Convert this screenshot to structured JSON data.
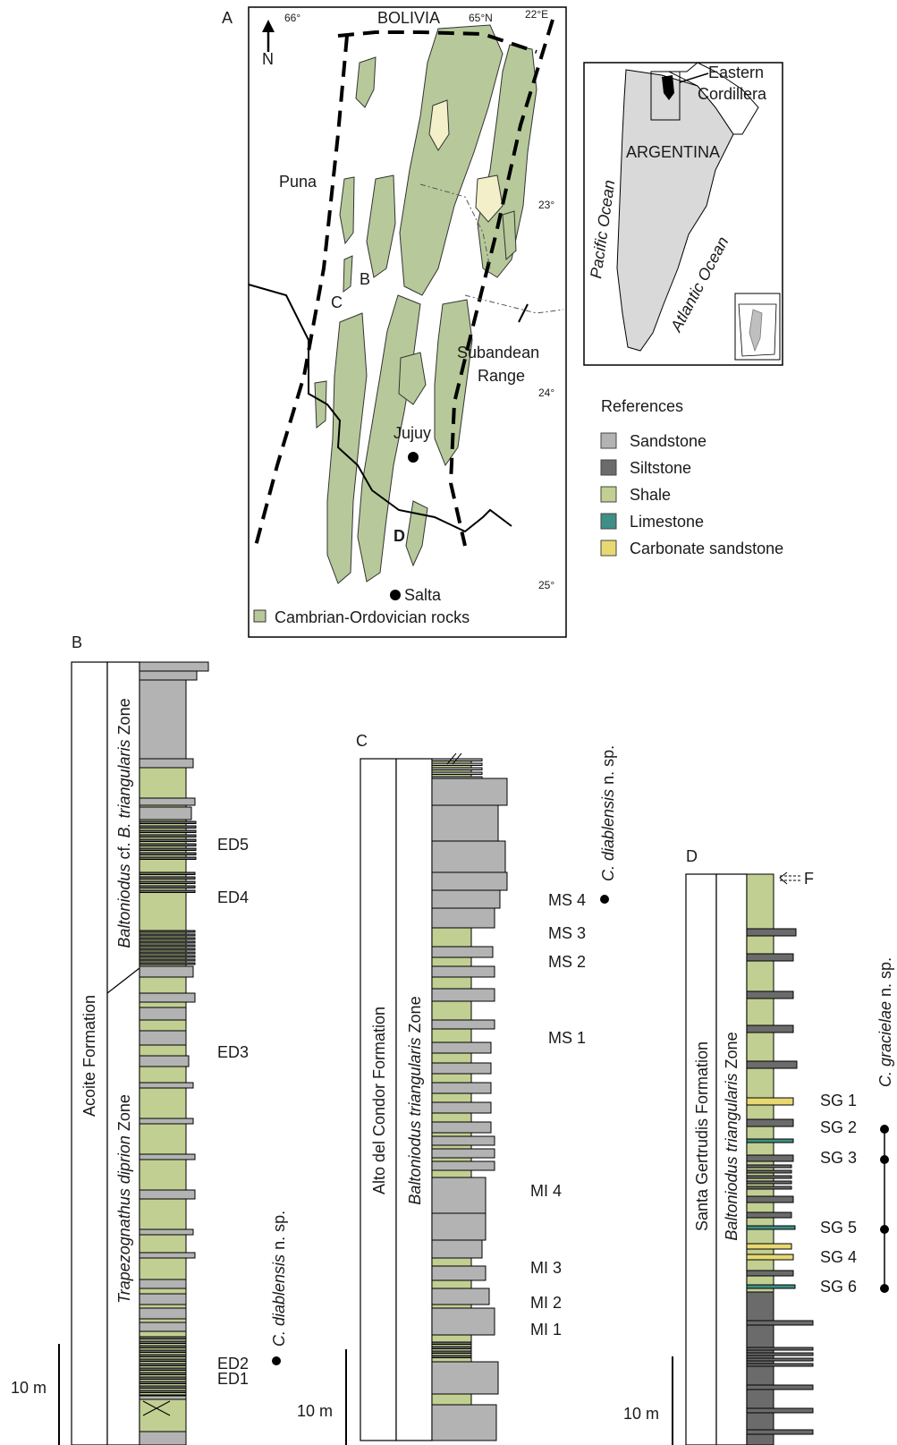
{
  "panels": {
    "A": "A",
    "B": "B",
    "C": "C",
    "D": "D"
  },
  "map": {
    "north": "N",
    "country_top": "BOLIVIA",
    "lon_66": "66°",
    "lon_65": "65°N",
    "lat_22": "22°E",
    "lat_23": "23°",
    "lat_24": "24°",
    "lat_25": "25°",
    "puna": "Puna",
    "subandean_1": "Subandean",
    "subandean_2": "Range",
    "jujuy": "Jujuy",
    "salta": "Salta",
    "loc_b": "B",
    "loc_c": "C",
    "loc_d": "D",
    "legend_label": "Cambrian-Ordovician rocks",
    "colors": {
      "rock": "#b7c99a",
      "yellow_rock": "#f3efc8"
    }
  },
  "inset": {
    "eastern_1": "Eastern",
    "eastern_2": "Cordillera",
    "argentina": "ARGENTINA",
    "pacific": "Pacific Ocean",
    "atlantic": "Atlantic Ocean",
    "land_color": "#d9d9d9"
  },
  "references": {
    "title": "References",
    "items": [
      {
        "label": "Sandstone",
        "color": "#b3b3b3"
      },
      {
        "label": "Siltstone",
        "color": "#6b6b6b"
      },
      {
        "label": "Shale",
        "color": "#c1cf92"
      },
      {
        "label": "Limestone",
        "color": "#3f8f86"
      },
      {
        "label": "Carbonate sandstone",
        "color": "#e8d872"
      }
    ]
  },
  "column_b": {
    "formation": "Acoite Formation",
    "zone_upper": [
      "Baltoniodus",
      " cf. ",
      "B. triangularis",
      " Zone"
    ],
    "zone_lower": [
      "Trapezognathus diprion",
      " Zone"
    ],
    "samples": [
      "ED5",
      "ED4",
      "ED3",
      "ED2",
      "ED1"
    ],
    "species": [
      "C. diablensis",
      " n. sp."
    ],
    "scale": "10 m"
  },
  "column_c": {
    "formation": "Alto del Condor Formation",
    "zone": [
      "Baltoniodus triangularis",
      " Zone"
    ],
    "samples": [
      "MS 4",
      "MS 3",
      "MS 2",
      "MS 1",
      "MI 4",
      "MI 3",
      "MI 2",
      "MI 1"
    ],
    "species": [
      "C. diablensis",
      " n. sp."
    ],
    "scale": "10 m"
  },
  "column_d": {
    "formation": "Santa Gertrudis Formation",
    "zone": [
      "Baltoniodus triangularis",
      " Zone"
    ],
    "samples": [
      "SG 1",
      "SG 2",
      "SG 3",
      "SG 5",
      "SG 4",
      "SG 6"
    ],
    "fault": "F",
    "species": [
      "C. gracielae",
      " n. sp."
    ],
    "scale": "10 m"
  }
}
